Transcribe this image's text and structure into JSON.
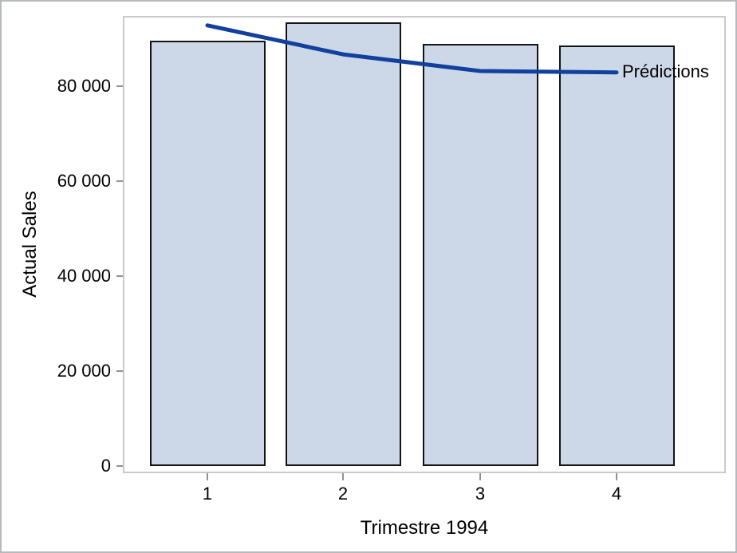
{
  "chart_data": {
    "type": "bar+line",
    "title": "",
    "categories": [
      "1",
      "2",
      "3",
      "4"
    ],
    "x_axis": {
      "label": "Trimestre 1994"
    },
    "y_axis": {
      "label": "Actual Sales",
      "ticks": [
        0,
        20000,
        40000,
        60000,
        80000
      ],
      "tick_labels": [
        "0",
        "20 000",
        "40 000",
        "60 000",
        "80 000"
      ],
      "range": [
        0,
        96500
      ]
    },
    "series": [
      {
        "name": "Actual Sales",
        "type": "bar",
        "values": [
          89600,
          93400,
          88900,
          88500
        ]
      },
      {
        "name": "Prédictions",
        "type": "line",
        "values": [
          92800,
          86700,
          83200,
          82900
        ]
      }
    ],
    "curve_label": "Prédictions",
    "grid": false,
    "legend_position": "line-end"
  },
  "colors": {
    "background": "#ffffff",
    "figure_border": "#b7babd",
    "plot_frame": "#c7cbce",
    "tick_mark": "#8f9396",
    "bar_fill": "#ccd7e7",
    "bar_border": "#141414",
    "line": "#11409e",
    "text": "#000000"
  }
}
